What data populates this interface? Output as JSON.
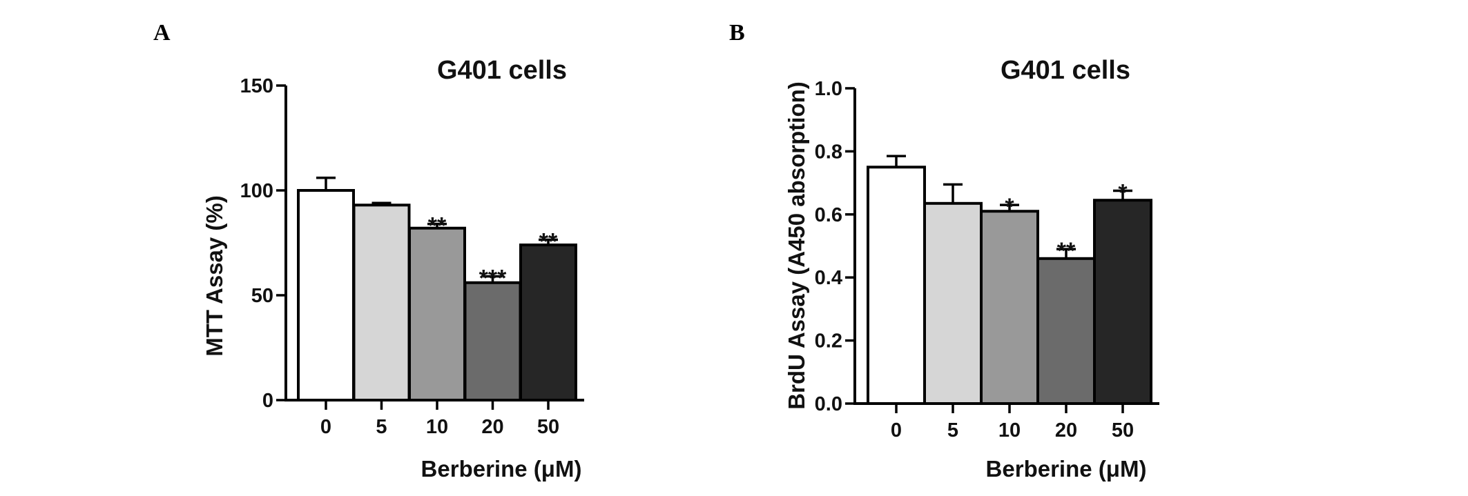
{
  "figure": {
    "panels": [
      {
        "letter": "A"
      },
      {
        "letter": "B"
      }
    ]
  },
  "chart_data": [
    {
      "type": "bar",
      "title": "G401 cells",
      "xlabel": "Berberine (μM)",
      "ylabel": "MTT Assay (%)",
      "categories": [
        "0",
        "5",
        "10",
        "20",
        "50"
      ],
      "values": [
        100,
        93,
        82,
        56,
        74
      ],
      "errors": [
        6,
        1,
        2,
        3,
        2.5
      ],
      "significance": [
        "",
        "",
        "**",
        "***",
        "**"
      ],
      "bar_colors": [
        "#ffffff",
        "#d6d6d6",
        "#999999",
        "#6b6b6b",
        "#262626"
      ],
      "ylim": [
        0,
        150
      ],
      "yticks": [
        0,
        50,
        100,
        150
      ],
      "ytick_labels": [
        "0",
        "50",
        "100",
        "150"
      ],
      "grid": false
    },
    {
      "type": "bar",
      "title": "G401 cells",
      "xlabel": "Berberine (μM)",
      "ylabel": "BrdU Assay (A450 absorption)",
      "categories": [
        "0",
        "5",
        "10",
        "20",
        "50"
      ],
      "values": [
        0.75,
        0.635,
        0.61,
        0.46,
        0.645
      ],
      "errors": [
        0.035,
        0.06,
        0.02,
        0.03,
        0.03
      ],
      "significance": [
        "",
        "",
        "*",
        "**",
        "*"
      ],
      "bar_colors": [
        "#ffffff",
        "#d6d6d6",
        "#999999",
        "#6b6b6b",
        "#262626"
      ],
      "ylim": [
        0,
        1.0
      ],
      "yticks": [
        0,
        0.2,
        0.4,
        0.6,
        0.8,
        1.0
      ],
      "ytick_labels": [
        "0.0",
        "0.2",
        "0.4",
        "0.6",
        "0.8",
        "1.0"
      ],
      "grid": false
    }
  ]
}
